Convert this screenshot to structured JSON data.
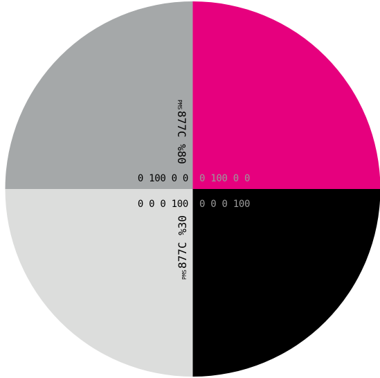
{
  "colors": {
    "magenta": "#e6007e",
    "gray_80": "#a5a8a9",
    "gray_30": "#dcdddc",
    "black": "#000000",
    "text_dark": "#000000",
    "text_light": "#ffffff",
    "text_muted": "#9b9b9b"
  },
  "quadrants": {
    "top_left": {
      "cmyk": "0 100 0 0",
      "pms_prefix": "PMS",
      "pms_code": "877C %80"
    },
    "top_right": {
      "cmyk": "0 100 0 0"
    },
    "bottom_left": {
      "cmyk": "0 0 0 100",
      "pms_prefix": "PMS",
      "pms_code": "877C %30"
    },
    "bottom_right": {
      "cmyk": "0 0 0 100"
    }
  }
}
